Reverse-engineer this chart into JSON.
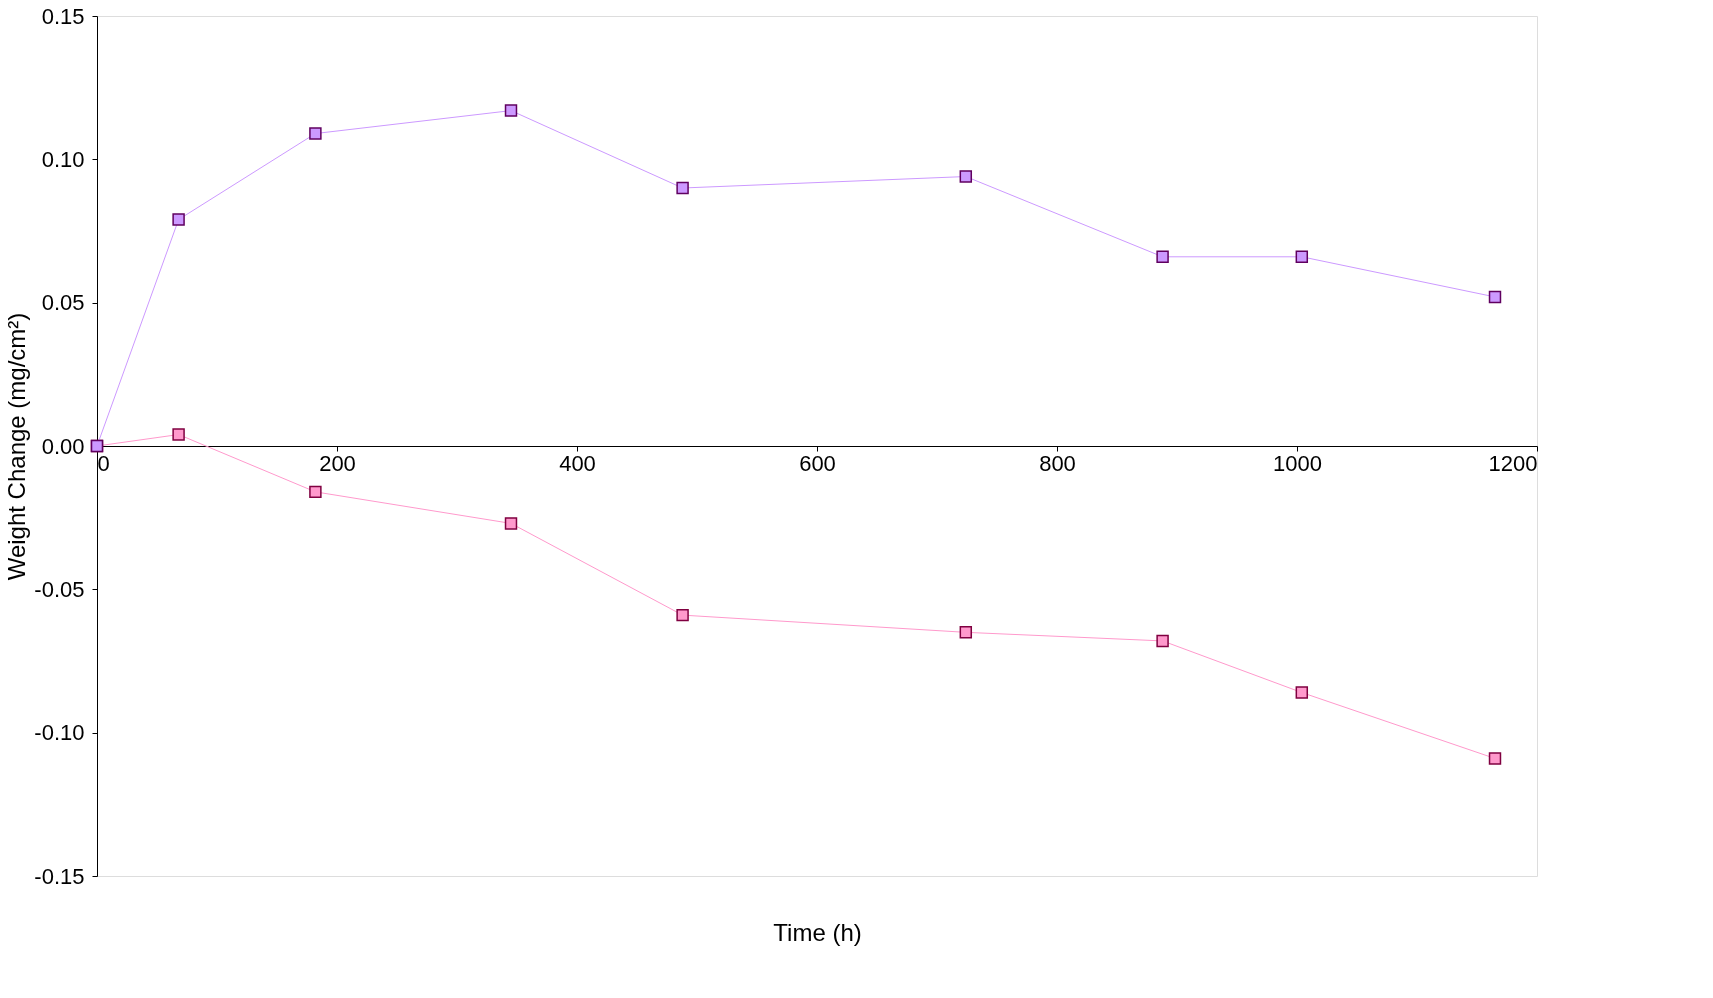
{
  "chart_data": {
    "type": "line",
    "xlabel": "Time (h)",
    "ylabel": "Weight Change (mg/cm²)",
    "x": [
      0,
      68,
      182,
      345,
      488,
      724,
      888,
      1004,
      1165
    ],
    "series": [
      {
        "color": "#ff99cc",
        "values": [
          0,
          0.004,
          -0.016,
          -0.027,
          -0.059,
          -0.065,
          -0.068,
          -0.086,
          -0.109
        ]
      },
      {
        "color": "#cc99ff",
        "values": [
          0,
          0.079,
          0.109,
          0.117,
          0.09,
          0.094,
          0.066,
          0.066,
          0.052
        ]
      }
    ],
    "xlim": [
      0,
      1200
    ],
    "xticks": [
      0,
      200,
      400,
      600,
      800,
      1000,
      1200
    ],
    "ylim": [
      -0.15,
      0.15
    ],
    "yticks": [
      {
        "value": -0.15,
        "label": "-0.15"
      },
      {
        "value": -0.1,
        "label": "-0.10"
      },
      {
        "value": -0.05,
        "label": "-0.05"
      },
      {
        "value": 0,
        "label": "0.00"
      },
      {
        "value": 0.05,
        "label": "0.05"
      },
      {
        "value": 0.1,
        "label": "0.10"
      },
      {
        "value": 0.15,
        "label": "0.15"
      }
    ],
    "marker": "square",
    "line_style": "solid",
    "grid": false
  }
}
